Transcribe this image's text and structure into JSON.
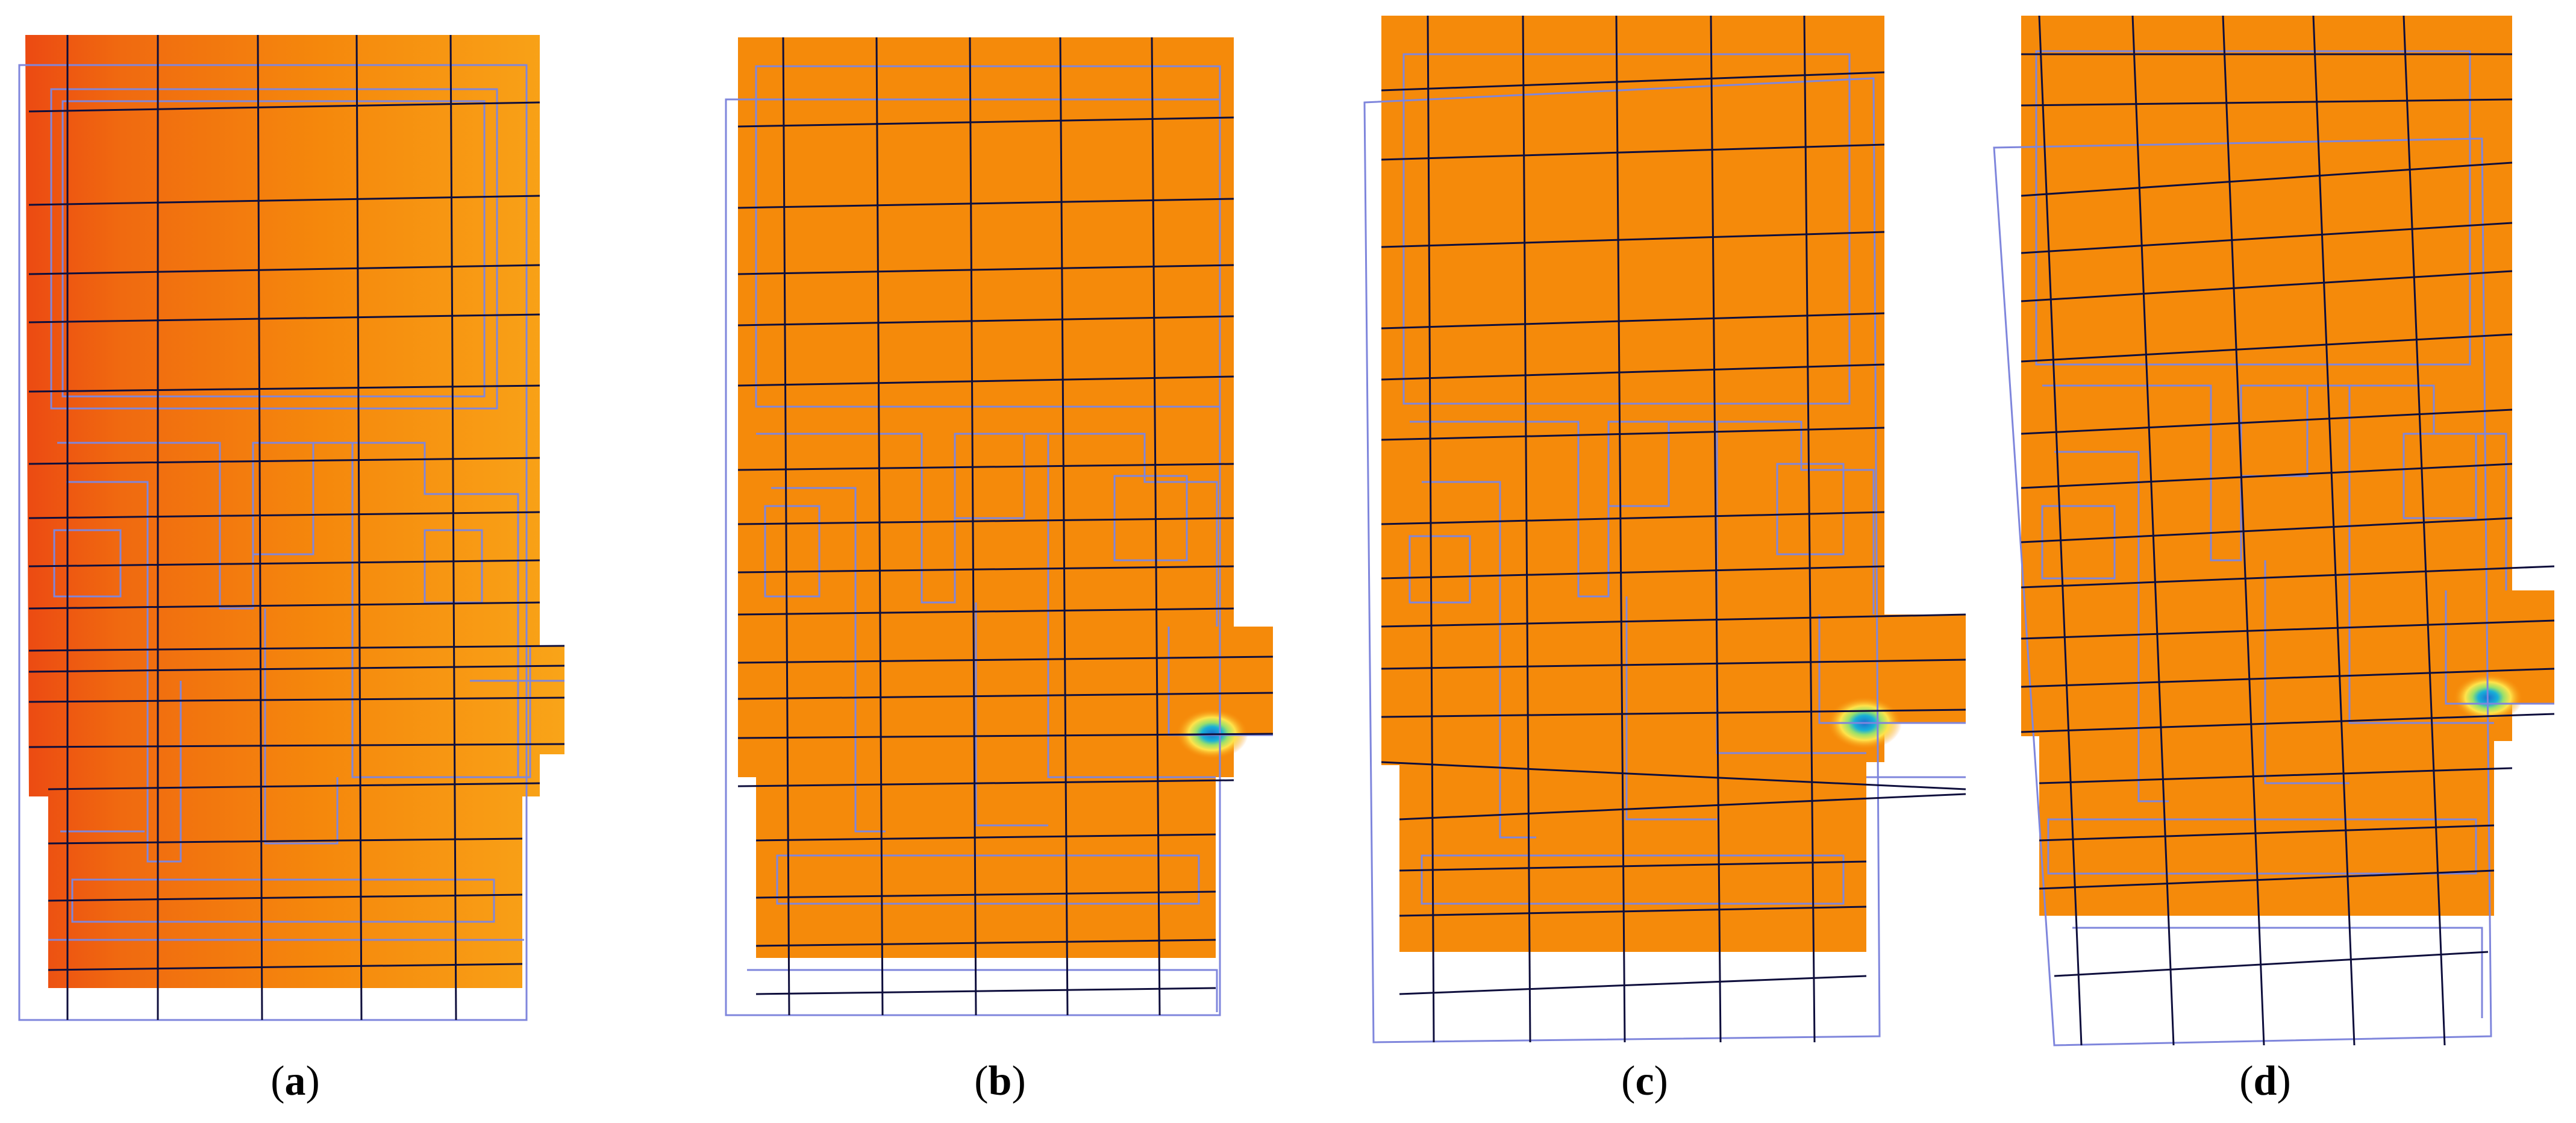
{
  "figure": {
    "panels": [
      {
        "id": "a",
        "label": "a",
        "stress_concentration": false
      },
      {
        "id": "b",
        "label": "b",
        "stress_concentration": true
      },
      {
        "id": "c",
        "label": "c",
        "stress_concentration": true
      },
      {
        "id": "d",
        "label": "d",
        "stress_concentration": true
      }
    ],
    "colors": {
      "fill_main": "#f58a0a",
      "fill_dark": "#ec4a12",
      "fill_light": "#f9a21a",
      "hotspot_outer": "#ffe34a",
      "hotspot_mid": "#9be06a",
      "hotspot_inner": "#1a8ad8",
      "deformed_mesh": "#0e0e3c",
      "undeformed_mesh": "#7f86dc"
    }
  }
}
